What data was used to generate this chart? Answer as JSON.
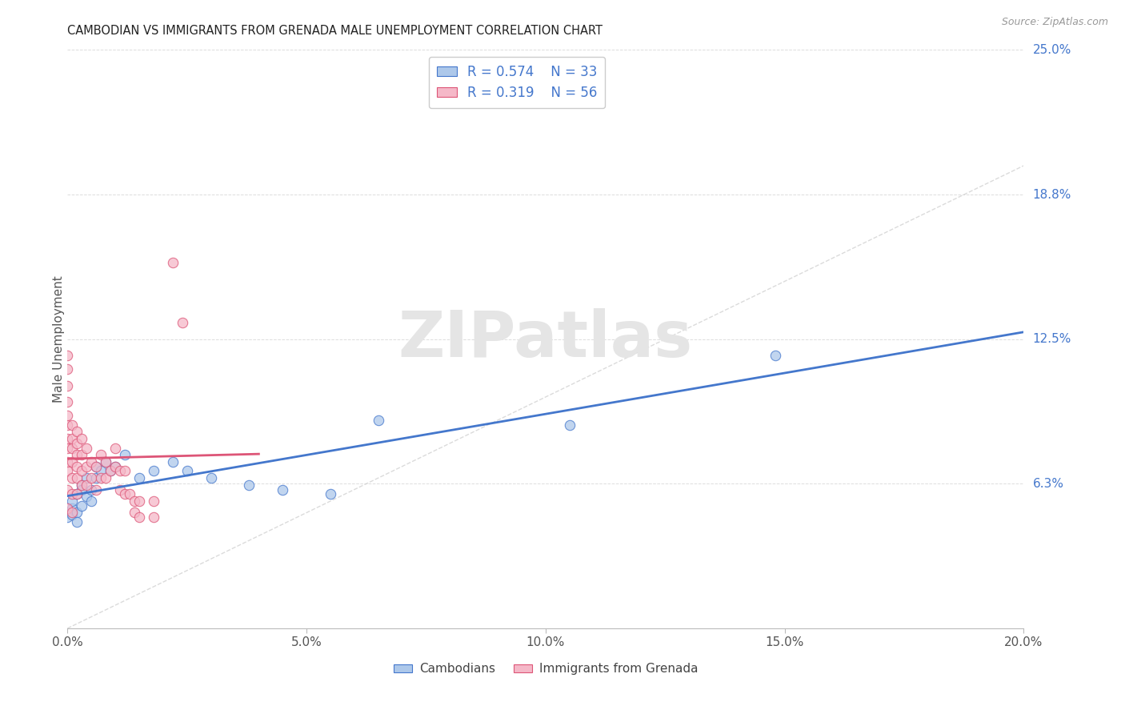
{
  "title": "CAMBODIAN VS IMMIGRANTS FROM GRENADA MALE UNEMPLOYMENT CORRELATION CHART",
  "source": "Source: ZipAtlas.com",
  "ylabel_label": "Male Unemployment",
  "xlim": [
    0.0,
    0.2
  ],
  "ylim": [
    0.0,
    0.25
  ],
  "x_tick_vals": [
    0.0,
    0.05,
    0.1,
    0.15,
    0.2
  ],
  "x_tick_labels": [
    "0.0%",
    "5.0%",
    "10.0%",
    "15.0%",
    "20.0%"
  ],
  "y_tick_vals": [
    0.0,
    0.0625,
    0.125,
    0.1875,
    0.25
  ],
  "y_tick_labels": [
    "",
    "6.3%",
    "12.5%",
    "18.8%",
    "25.0%"
  ],
  "cambodian_R": "0.574",
  "cambodian_N": "33",
  "grenada_R": "0.319",
  "grenada_N": "56",
  "cambodian_color": "#adc8ea",
  "grenada_color": "#f5b8c8",
  "trend_cambodian_color": "#4477cc",
  "trend_grenada_color": "#dd5577",
  "diagonal_color": "#cccccc",
  "legend_labels": [
    "Cambodians",
    "Immigrants from Grenada"
  ],
  "watermark_text": "ZIPatlas",
  "cambodian_points": [
    [
      0.0,
      0.05
    ],
    [
      0.0,
      0.048
    ],
    [
      0.001,
      0.052
    ],
    [
      0.001,
      0.049
    ],
    [
      0.001,
      0.055
    ],
    [
      0.002,
      0.05
    ],
    [
      0.002,
      0.058
    ],
    [
      0.002,
      0.046
    ],
    [
      0.003,
      0.053
    ],
    [
      0.003,
      0.062
    ],
    [
      0.003,
      0.06
    ],
    [
      0.004,
      0.057
    ],
    [
      0.004,
      0.065
    ],
    [
      0.005,
      0.055
    ],
    [
      0.005,
      0.06
    ],
    [
      0.006,
      0.07
    ],
    [
      0.006,
      0.065
    ],
    [
      0.007,
      0.068
    ],
    [
      0.008,
      0.072
    ],
    [
      0.009,
      0.068
    ],
    [
      0.01,
      0.07
    ],
    [
      0.012,
      0.075
    ],
    [
      0.015,
      0.065
    ],
    [
      0.018,
      0.068
    ],
    [
      0.022,
      0.072
    ],
    [
      0.025,
      0.068
    ],
    [
      0.03,
      0.065
    ],
    [
      0.038,
      0.062
    ],
    [
      0.045,
      0.06
    ],
    [
      0.055,
      0.058
    ],
    [
      0.065,
      0.09
    ],
    [
      0.105,
      0.088
    ],
    [
      0.148,
      0.118
    ]
  ],
  "grenada_points": [
    [
      0.0,
      0.052
    ],
    [
      0.0,
      0.06
    ],
    [
      0.0,
      0.068
    ],
    [
      0.0,
      0.072
    ],
    [
      0.0,
      0.078
    ],
    [
      0.0,
      0.082
    ],
    [
      0.0,
      0.088
    ],
    [
      0.0,
      0.092
    ],
    [
      0.0,
      0.098
    ],
    [
      0.0,
      0.105
    ],
    [
      0.0,
      0.112
    ],
    [
      0.0,
      0.118
    ],
    [
      0.001,
      0.05
    ],
    [
      0.001,
      0.058
    ],
    [
      0.001,
      0.065
    ],
    [
      0.001,
      0.072
    ],
    [
      0.001,
      0.078
    ],
    [
      0.001,
      0.082
    ],
    [
      0.001,
      0.088
    ],
    [
      0.002,
      0.058
    ],
    [
      0.002,
      0.065
    ],
    [
      0.002,
      0.07
    ],
    [
      0.002,
      0.075
    ],
    [
      0.002,
      0.08
    ],
    [
      0.002,
      0.085
    ],
    [
      0.003,
      0.062
    ],
    [
      0.003,
      0.068
    ],
    [
      0.003,
      0.075
    ],
    [
      0.003,
      0.082
    ],
    [
      0.004,
      0.062
    ],
    [
      0.004,
      0.07
    ],
    [
      0.004,
      0.078
    ],
    [
      0.005,
      0.065
    ],
    [
      0.005,
      0.072
    ],
    [
      0.006,
      0.06
    ],
    [
      0.006,
      0.07
    ],
    [
      0.007,
      0.065
    ],
    [
      0.007,
      0.075
    ],
    [
      0.008,
      0.065
    ],
    [
      0.008,
      0.072
    ],
    [
      0.009,
      0.068
    ],
    [
      0.01,
      0.07
    ],
    [
      0.01,
      0.078
    ],
    [
      0.011,
      0.06
    ],
    [
      0.011,
      0.068
    ],
    [
      0.012,
      0.058
    ],
    [
      0.012,
      0.068
    ],
    [
      0.013,
      0.058
    ],
    [
      0.014,
      0.05
    ],
    [
      0.014,
      0.055
    ],
    [
      0.015,
      0.048
    ],
    [
      0.015,
      0.055
    ],
    [
      0.018,
      0.048
    ],
    [
      0.018,
      0.055
    ],
    [
      0.022,
      0.158
    ],
    [
      0.024,
      0.132
    ]
  ]
}
